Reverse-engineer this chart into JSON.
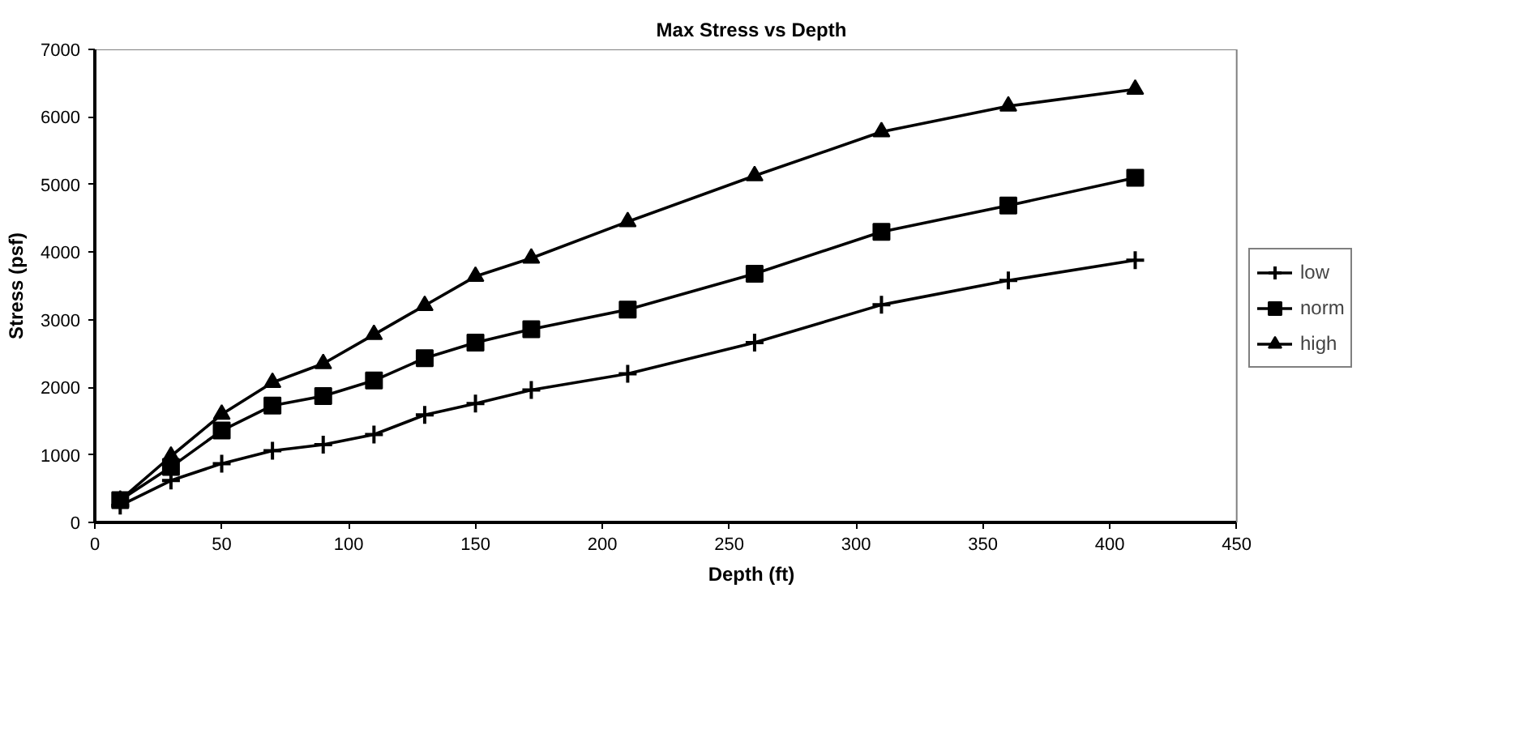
{
  "chart_data": {
    "type": "line",
    "title": "Max Stress vs Depth",
    "xlabel": "Depth (ft)",
    "ylabel": "Stress (psf)",
    "x": [
      10,
      30,
      50,
      70,
      90,
      110,
      130,
      150,
      172,
      210,
      260,
      310,
      360,
      410
    ],
    "series": [
      {
        "name": "low",
        "color": "#000000",
        "marker": "cross",
        "values": [
          250,
          620,
          870,
          1060,
          1150,
          1300,
          1590,
          1760,
          1960,
          2200,
          2660,
          3220,
          3580,
          3880
        ]
      },
      {
        "name": "norm",
        "color": "#000000",
        "marker": "square",
        "values": [
          330,
          820,
          1360,
          1730,
          1870,
          2100,
          2430,
          2660,
          2860,
          3150,
          3680,
          4300,
          4690,
          5100
        ]
      },
      {
        "name": "high",
        "color": "#000000",
        "marker": "triangle",
        "values": [
          330,
          980,
          1600,
          2070,
          2350,
          2780,
          3210,
          3640,
          3910,
          4450,
          5130,
          5780,
          6160,
          6410
        ]
      }
    ],
    "xlim": [
      0,
      450
    ],
    "xticks": [
      0,
      50,
      100,
      150,
      200,
      250,
      300,
      350,
      400,
      450
    ],
    "ylim": [
      0,
      7000
    ],
    "yticks": [
      0,
      1000,
      2000,
      3000,
      4000,
      5000,
      6000,
      7000
    ],
    "grid": false,
    "legend": "right",
    "line_style": "solid"
  }
}
